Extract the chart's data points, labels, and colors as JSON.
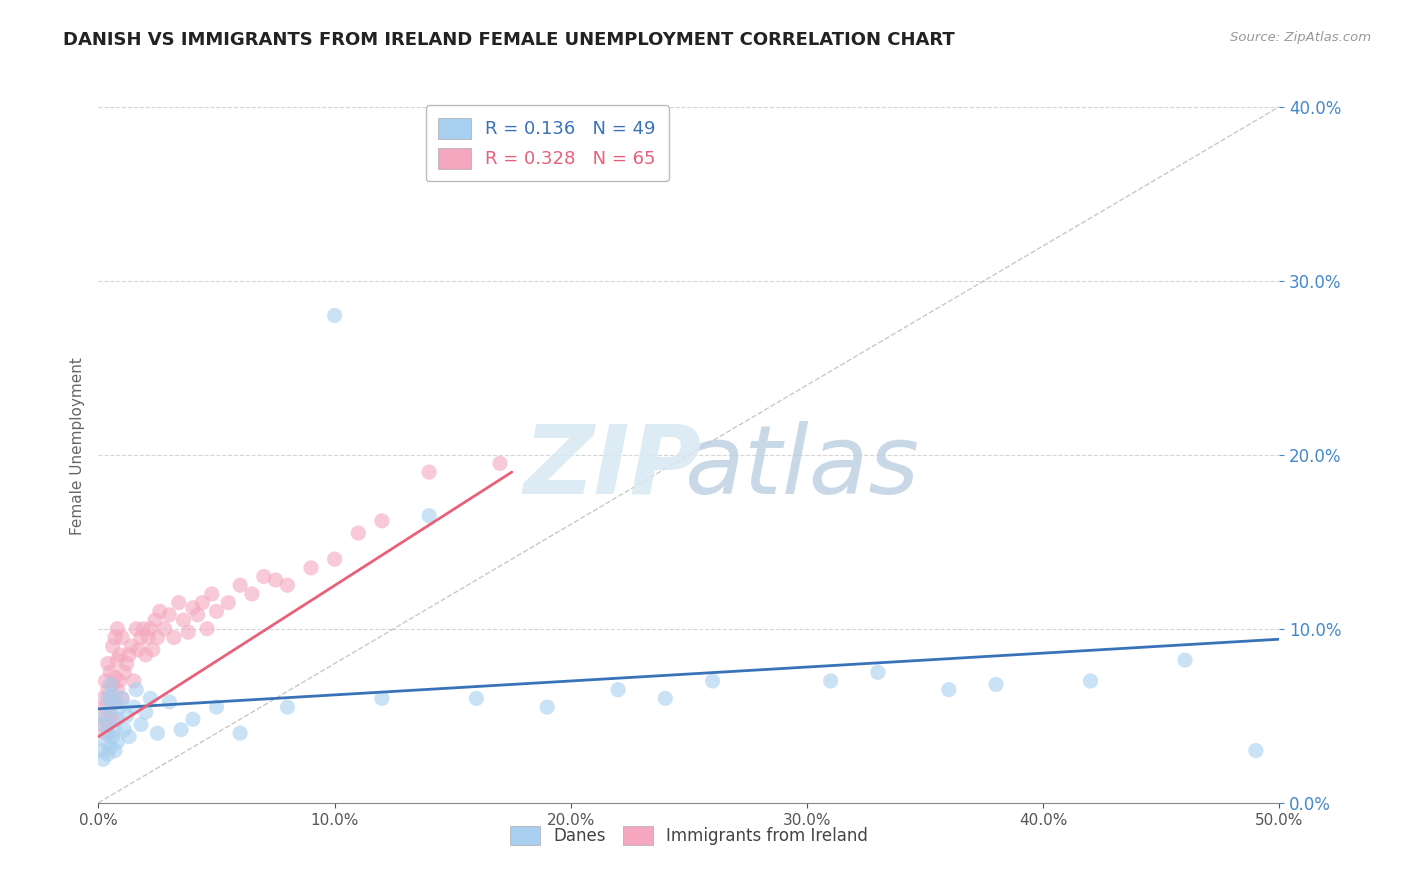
{
  "title": "DANISH VS IMMIGRANTS FROM IRELAND FEMALE UNEMPLOYMENT CORRELATION CHART",
  "source": "Source: ZipAtlas.com",
  "xlabel": "",
  "ylabel": "Female Unemployment",
  "xlim": [
    0.0,
    0.5
  ],
  "ylim": [
    0.0,
    0.41
  ],
  "xticks": [
    0.0,
    0.1,
    0.2,
    0.3,
    0.4,
    0.5
  ],
  "yticks": [
    0.0,
    0.1,
    0.2,
    0.3,
    0.4
  ],
  "legend_R1": "R = 0.136",
  "legend_N1": "N = 49",
  "legend_R2": "R = 0.328",
  "legend_N2": "N = 65",
  "danes_color": "#A8CFEF",
  "ireland_color": "#F4A7BE",
  "danes_line_color": "#3A72B8",
  "ireland_line_color": "#E8607A",
  "danes_scatter_x": [
    0.001,
    0.002,
    0.002,
    0.003,
    0.003,
    0.004,
    0.004,
    0.004,
    0.005,
    0.005,
    0.005,
    0.006,
    0.006,
    0.007,
    0.007,
    0.008,
    0.008,
    0.009,
    0.01,
    0.011,
    0.012,
    0.013,
    0.015,
    0.016,
    0.018,
    0.02,
    0.022,
    0.025,
    0.03,
    0.035,
    0.04,
    0.05,
    0.06,
    0.08,
    0.1,
    0.12,
    0.14,
    0.16,
    0.19,
    0.22,
    0.24,
    0.26,
    0.31,
    0.33,
    0.36,
    0.38,
    0.42,
    0.46,
    0.49
  ],
  "danes_scatter_y": [
    0.03,
    0.025,
    0.045,
    0.035,
    0.05,
    0.028,
    0.06,
    0.04,
    0.032,
    0.055,
    0.068,
    0.038,
    0.062,
    0.042,
    0.03,
    0.048,
    0.035,
    0.055,
    0.06,
    0.042,
    0.05,
    0.038,
    0.055,
    0.065,
    0.045,
    0.052,
    0.06,
    0.04,
    0.058,
    0.042,
    0.048,
    0.055,
    0.04,
    0.055,
    0.28,
    0.06,
    0.165,
    0.06,
    0.055,
    0.065,
    0.06,
    0.07,
    0.07,
    0.075,
    0.065,
    0.068,
    0.07,
    0.082,
    0.03
  ],
  "ireland_scatter_x": [
    0.001,
    0.002,
    0.002,
    0.003,
    0.003,
    0.003,
    0.004,
    0.004,
    0.004,
    0.005,
    0.005,
    0.005,
    0.006,
    0.006,
    0.006,
    0.007,
    0.007,
    0.007,
    0.008,
    0.008,
    0.008,
    0.009,
    0.009,
    0.01,
    0.01,
    0.011,
    0.012,
    0.013,
    0.014,
    0.015,
    0.016,
    0.017,
    0.018,
    0.019,
    0.02,
    0.021,
    0.022,
    0.023,
    0.024,
    0.025,
    0.026,
    0.028,
    0.03,
    0.032,
    0.034,
    0.036,
    0.038,
    0.04,
    0.042,
    0.044,
    0.046,
    0.048,
    0.05,
    0.055,
    0.06,
    0.065,
    0.07,
    0.075,
    0.08,
    0.09,
    0.1,
    0.11,
    0.12,
    0.14,
    0.17
  ],
  "ireland_scatter_y": [
    0.05,
    0.045,
    0.06,
    0.04,
    0.055,
    0.07,
    0.045,
    0.065,
    0.08,
    0.05,
    0.06,
    0.075,
    0.048,
    0.068,
    0.09,
    0.058,
    0.072,
    0.095,
    0.065,
    0.082,
    0.1,
    0.07,
    0.085,
    0.06,
    0.095,
    0.075,
    0.08,
    0.085,
    0.09,
    0.07,
    0.1,
    0.088,
    0.095,
    0.1,
    0.085,
    0.095,
    0.1,
    0.088,
    0.105,
    0.095,
    0.11,
    0.1,
    0.108,
    0.095,
    0.115,
    0.105,
    0.098,
    0.112,
    0.108,
    0.115,
    0.1,
    0.12,
    0.11,
    0.115,
    0.125,
    0.12,
    0.13,
    0.128,
    0.125,
    0.135,
    0.14,
    0.155,
    0.162,
    0.19,
    0.195
  ],
  "ireland_line_end_x": 0.175,
  "background_color": "#FFFFFF",
  "grid_color": "#CCCCCC",
  "watermark_zip_color": "#E0E8F0",
  "watermark_atlas_color": "#C8D8E8",
  "title_fontsize": 13,
  "axis_label_fontsize": 11,
  "tick_fontsize": 11,
  "ytick_color": "#4488CC"
}
